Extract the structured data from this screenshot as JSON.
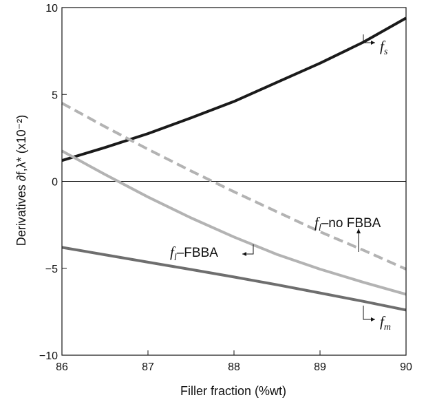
{
  "chart_data": {
    "type": "line",
    "xlabel": "Filler fraction (%wt)",
    "ylabel": "Derivatives ∂f,λ* (x10⁻²)",
    "xlim": [
      86,
      90
    ],
    "ylim": [
      -10,
      10
    ],
    "xticks": [
      86,
      87,
      88,
      89,
      90
    ],
    "yticks": [
      -10,
      -5,
      0,
      5,
      10
    ],
    "xtick_labels": [
      "86",
      "87",
      "88",
      "89",
      "90"
    ],
    "ytick_labels": [
      "−10",
      "−5",
      "0",
      "5",
      "10"
    ],
    "zero_line": true,
    "series": [
      {
        "name": "f_s",
        "color": "#1a1a1a",
        "dash": "solid",
        "x": [
          86,
          86.5,
          87,
          87.5,
          88,
          88.5,
          89,
          89.5,
          90
        ],
        "y": [
          1.2,
          1.95,
          2.75,
          3.65,
          4.6,
          5.7,
          6.8,
          8.0,
          9.4
        ]
      },
      {
        "name": "f_l–no FBBA",
        "color": "#b3b3b3",
        "dash": "dashed",
        "x": [
          86,
          86.5,
          87,
          87.5,
          88,
          88.5,
          89,
          89.5,
          90
        ],
        "y": [
          4.5,
          3.15,
          1.85,
          0.6,
          -0.6,
          -1.75,
          -2.9,
          -3.95,
          -5.05
        ]
      },
      {
        "name": "f_l–FBBA",
        "color": "#b3b3b3",
        "dash": "solid",
        "x": [
          86,
          86.5,
          87,
          87.5,
          88,
          88.5,
          89,
          89.5,
          90
        ],
        "y": [
          1.75,
          0.4,
          -0.9,
          -2.1,
          -3.2,
          -4.2,
          -5.05,
          -5.8,
          -6.5
        ]
      },
      {
        "name": "f_m",
        "color": "#6e6e6e",
        "dash": "solid",
        "x": [
          86,
          86.5,
          87,
          87.5,
          88,
          88.5,
          89,
          89.5,
          90
        ],
        "y": [
          -3.8,
          -4.22,
          -4.65,
          -5.07,
          -5.5,
          -5.95,
          -6.42,
          -6.9,
          -7.4
        ]
      }
    ],
    "annotations": {
      "fs": {
        "main": "f",
        "sub": "s"
      },
      "fm": {
        "main": "f",
        "sub": "m"
      },
      "fl_fbba": {
        "main": "f",
        "sub": "l",
        "rest": "–FBBA"
      },
      "fl_nofbba": {
        "main": "f",
        "sub": "l",
        "rest": "–no FBBA"
      }
    }
  }
}
